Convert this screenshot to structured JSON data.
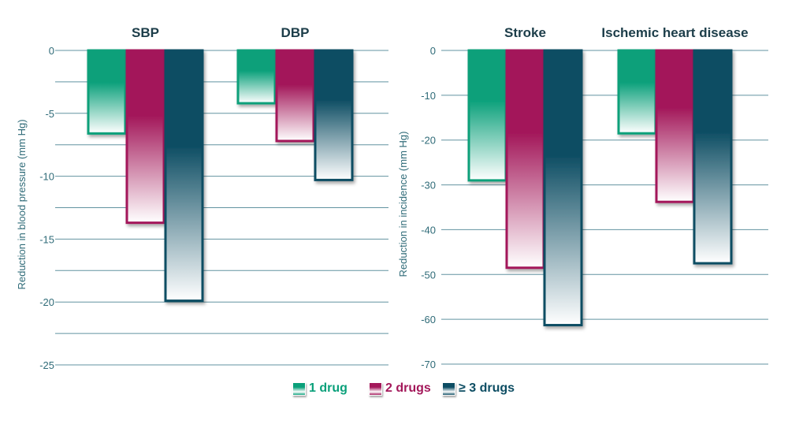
{
  "colors": {
    "grid": "#2d6f82",
    "axis_text": "#2f6b78",
    "title_text": "#1c3d49",
    "one_drug": "#0aa07a",
    "two_drugs": "#a3185a",
    "three_drugs": "#0d4d63"
  },
  "legend": {
    "placement": "bottom-center",
    "items": [
      {
        "key": "one",
        "label": "1 drug",
        "color": "#0aa07a"
      },
      {
        "key": "two",
        "label": "2 drugs",
        "color": "#a3185a"
      },
      {
        "key": "three",
        "label": "≥ 3 drugs",
        "color": "#0d4d63"
      }
    ]
  },
  "chart_data": [
    {
      "type": "bar",
      "ylabel": "Reduction in blood pressure (mm Hg)",
      "ylim": [
        -25,
        0
      ],
      "yticks": [
        0,
        -5,
        -10,
        -15,
        -20,
        -25
      ],
      "ytick_labels": [
        "0",
        "-5",
        "-10",
        "-15",
        "-20",
        "-25"
      ],
      "grid": true,
      "categories": [
        "SBP",
        "DBP"
      ],
      "series": [
        {
          "name": "1 drug",
          "values": [
            -6.6,
            -4.2
          ]
        },
        {
          "name": "2 drugs",
          "values": [
            -13.7,
            -7.2
          ]
        },
        {
          "name": "≥ 3 drugs",
          "values": [
            -19.9,
            -10.3
          ]
        }
      ]
    },
    {
      "type": "bar",
      "ylabel": "Reduction in incidence (mm Hg)",
      "ylim": [
        -70,
        0
      ],
      "yticks": [
        0,
        -10,
        -20,
        -30,
        -40,
        -50,
        -60,
        -70
      ],
      "ytick_labels": [
        "0",
        "-10",
        "-20",
        "-30",
        "-40",
        "-50",
        "-60",
        "-70"
      ],
      "grid": true,
      "categories": [
        "Stroke",
        "Ischemic heart disease"
      ],
      "series": [
        {
          "name": "1 drug",
          "values": [
            -29,
            -18.5
          ]
        },
        {
          "name": "2 drugs",
          "values": [
            -48.5,
            -33.8
          ]
        },
        {
          "name": "≥ 3 drugs",
          "values": [
            -61.3,
            -47.5
          ]
        }
      ]
    }
  ]
}
